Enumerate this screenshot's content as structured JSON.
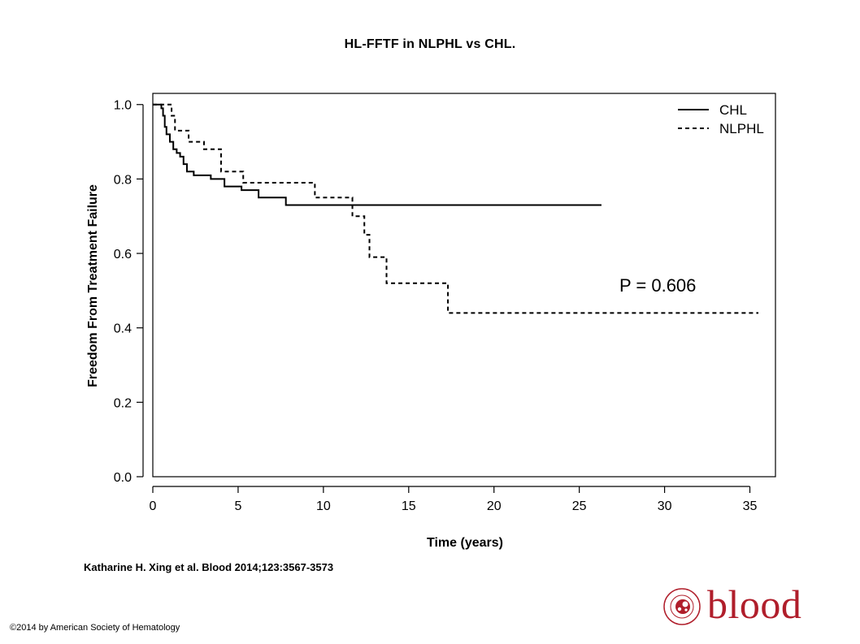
{
  "title": "HL-FFTF in NLPHL vs CHL.",
  "citation": "Katharine H. Xing et al. Blood 2014;123:3567-3573",
  "copyright": "©2014 by American Society of Hematology",
  "logo": {
    "text": "blood",
    "ring_text": "AMERICAN SOCIETY OF HEMATOLOGY",
    "color": "#b01e2b"
  },
  "chart_data": {
    "type": "line",
    "step": true,
    "xlabel": "Time (years)",
    "ylabel": "Freedom From Treatment Failure",
    "xlim": [
      0,
      36.5
    ],
    "ylim": [
      0,
      1.03
    ],
    "xticks": [
      "0",
      "5",
      "10",
      "15",
      "20",
      "25",
      "30",
      "35"
    ],
    "xtick_values": [
      0,
      5,
      10,
      15,
      20,
      25,
      30,
      35
    ],
    "yticks": [
      "0.0",
      "0.2",
      "0.4",
      "0.6",
      "0.8",
      "1.0"
    ],
    "ytick_values": [
      0,
      0.2,
      0.4,
      0.6,
      0.8,
      1.0
    ],
    "grid": false,
    "legend_position": "top-right",
    "annotation": "P = 0.606",
    "series": [
      {
        "name": "CHL",
        "style": "solid",
        "color": "#000000",
        "x": [
          0,
          0.5,
          0.6,
          0.7,
          0.8,
          1.0,
          1.2,
          1.4,
          1.6,
          1.8,
          2.0,
          2.4,
          3.4,
          4.2,
          5.2,
          6.2,
          7.8,
          26.3
        ],
        "y": [
          1.0,
          0.99,
          0.97,
          0.94,
          0.92,
          0.9,
          0.88,
          0.87,
          0.86,
          0.84,
          0.82,
          0.81,
          0.8,
          0.78,
          0.77,
          0.75,
          0.73,
          0.73
        ]
      },
      {
        "name": "NLPHL",
        "style": "dashed",
        "color": "#000000",
        "x": [
          0,
          1.1,
          1.3,
          2.1,
          3.0,
          4.0,
          5.3,
          9.5,
          11.7,
          12.4,
          12.7,
          13.7,
          17.3,
          35.5
        ],
        "y": [
          1.0,
          0.97,
          0.93,
          0.9,
          0.88,
          0.82,
          0.79,
          0.75,
          0.7,
          0.65,
          0.59,
          0.52,
          0.44,
          0.44
        ]
      }
    ]
  }
}
